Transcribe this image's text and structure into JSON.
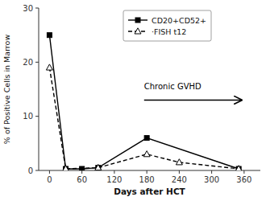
{
  "chart_data": {
    "type": "line",
    "xlabel": "Days after HCT",
    "ylabel": "% of Positive Cells in Marrow",
    "series": [
      {
        "name": "CD20+CD52+",
        "color": "#000000",
        "marker": "square",
        "line_style": "solid",
        "x": [
          0,
          30,
          60,
          90,
          180,
          350
        ],
        "values": [
          25,
          0.3,
          0.3,
          0.5,
          6,
          0.3
        ]
      },
      {
        "name": "·FISH t12",
        "color": "#000000",
        "marker": "triangle",
        "line_style": "dashed",
        "x": [
          0,
          30,
          90,
          180,
          240,
          350
        ],
        "values": [
          19,
          0.3,
          0.5,
          3,
          1.5,
          0.3
        ]
      }
    ],
    "xlim": [
      -20,
      390
    ],
    "ylim": [
      0,
      30
    ],
    "xticks": [
      0,
      60,
      120,
      180,
      240,
      300,
      360
    ],
    "yticks": [
      0,
      10,
      20,
      30
    ],
    "grid": false,
    "legend": "top",
    "annotations": [
      {
        "text": "Chronic GVHD",
        "x": 175,
        "y": 15,
        "arrow": {
          "x_start": 175,
          "x_end": 355,
          "y": 13
        }
      }
    ]
  }
}
